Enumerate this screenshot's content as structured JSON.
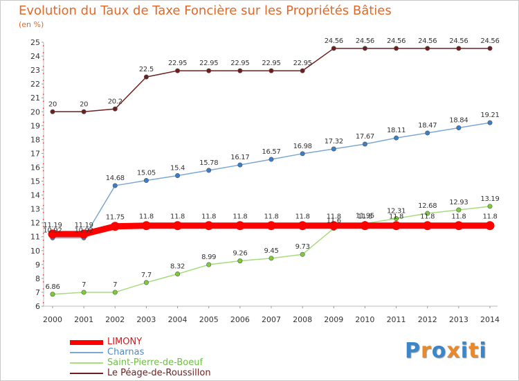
{
  "header": {
    "title": "Evolution du Taux de Taxe Foncière sur les Propriétés Bâties",
    "unit": "(en %)"
  },
  "brand": {
    "logo_text": "Proxiti",
    "letters": [
      "P",
      "r",
      "o",
      "x",
      "i",
      "t",
      "i"
    ],
    "letter_colors": [
      "#3a86c8",
      "#e8892a",
      "#3a86c8",
      "#e8892a",
      "#3a86c8",
      "#e8892a",
      "#3a86c8"
    ]
  },
  "chart_data": {
    "type": "line",
    "title": "Evolution du Taux de Taxe Foncière sur les Propriétés Bâties",
    "ylabel": "(en %)",
    "xlabel": "",
    "ylim": [
      6,
      25
    ],
    "yticks": [
      6,
      7,
      8,
      9,
      10,
      11,
      12,
      13,
      14,
      15,
      16,
      17,
      18,
      19,
      20,
      21,
      22,
      23,
      24,
      25
    ],
    "categories": [
      "2000",
      "2001",
      "2002",
      "2003",
      "2004",
      "2005",
      "2006",
      "2007",
      "2008",
      "2009",
      "2010",
      "2011",
      "2012",
      "2013",
      "2014"
    ],
    "legend_position": "bottom-left",
    "series": [
      {
        "name": "Le Péage-de-Roussillon",
        "color": "#6e1e1e",
        "marker": "#6e1e1e",
        "values": [
          20,
          20,
          20.2,
          22.5,
          22.95,
          22.95,
          22.95,
          22.95,
          22.95,
          24.56,
          24.56,
          24.56,
          24.56,
          24.56,
          24.56
        ],
        "labels": [
          "20",
          "20",
          "20.2",
          "22.5",
          "22.95",
          "22.95",
          "22.95",
          "22.95",
          "22.95",
          "24.56",
          "24.56",
          "24.56",
          "24.56",
          "24.56",
          "24.56"
        ]
      },
      {
        "name": "Charnas",
        "color": "#7ba7d4",
        "marker": "#3a7ec8",
        "values": [
          10.92,
          10.92,
          14.68,
          15.05,
          15.4,
          15.78,
          16.17,
          16.57,
          16.98,
          17.32,
          17.67,
          18.11,
          18.47,
          18.84,
          19.21
        ],
        "labels": [
          "10.92",
          "10.92",
          "14.68",
          "15.05",
          "15.4",
          "15.78",
          "16.17",
          "16.57",
          "16.98",
          "17.32",
          "17.67",
          "18.11",
          "18.47",
          "18.84",
          "19.21"
        ]
      },
      {
        "name": "Saint-Pierre-de-Boeuf",
        "color": "#a6dc7c",
        "marker": "#7ecb3a",
        "values": [
          6.86,
          7,
          7,
          7.7,
          8.32,
          8.99,
          9.26,
          9.45,
          9.73,
          11.6,
          11.95,
          12.31,
          12.68,
          12.93,
          13.19
        ],
        "labels": [
          "6.86",
          "7",
          "7",
          "7.7",
          "8.32",
          "8.99",
          "9.26",
          "9.45",
          "9.73",
          "11.6",
          "11.95",
          "12.31",
          "12.68",
          "12.93",
          "13.19"
        ]
      },
      {
        "name": "LIMONY",
        "color": "#ff0000",
        "marker": "#ff0000",
        "values": [
          11.19,
          11.19,
          11.75,
          11.8,
          11.8,
          11.8,
          11.8,
          11.8,
          11.8,
          11.8,
          11.8,
          11.8,
          11.8,
          11.8,
          11.8
        ],
        "labels": [
          "11.19",
          "11.19",
          "11.75",
          "11.8",
          "11.8",
          "11.8",
          "11.8",
          "11.8",
          "11.8",
          "11.8",
          "11.8",
          "11.8",
          "11.8",
          "11.8",
          "11.8"
        ]
      }
    ],
    "legend": [
      {
        "name": "LIMONY",
        "color": "#ff0000",
        "text_color": "#e81010"
      },
      {
        "name": "Charnas",
        "color": "#7ba7d4",
        "text_color": "#4a8ad4"
      },
      {
        "name": "Saint-Pierre-de-Boeuf",
        "color": "#a6dc7c",
        "text_color": "#6cc040"
      },
      {
        "name": "Le Péage-de-Roussillon",
        "color": "#6e1e1e",
        "text_color": "#6e1e1e"
      }
    ]
  }
}
